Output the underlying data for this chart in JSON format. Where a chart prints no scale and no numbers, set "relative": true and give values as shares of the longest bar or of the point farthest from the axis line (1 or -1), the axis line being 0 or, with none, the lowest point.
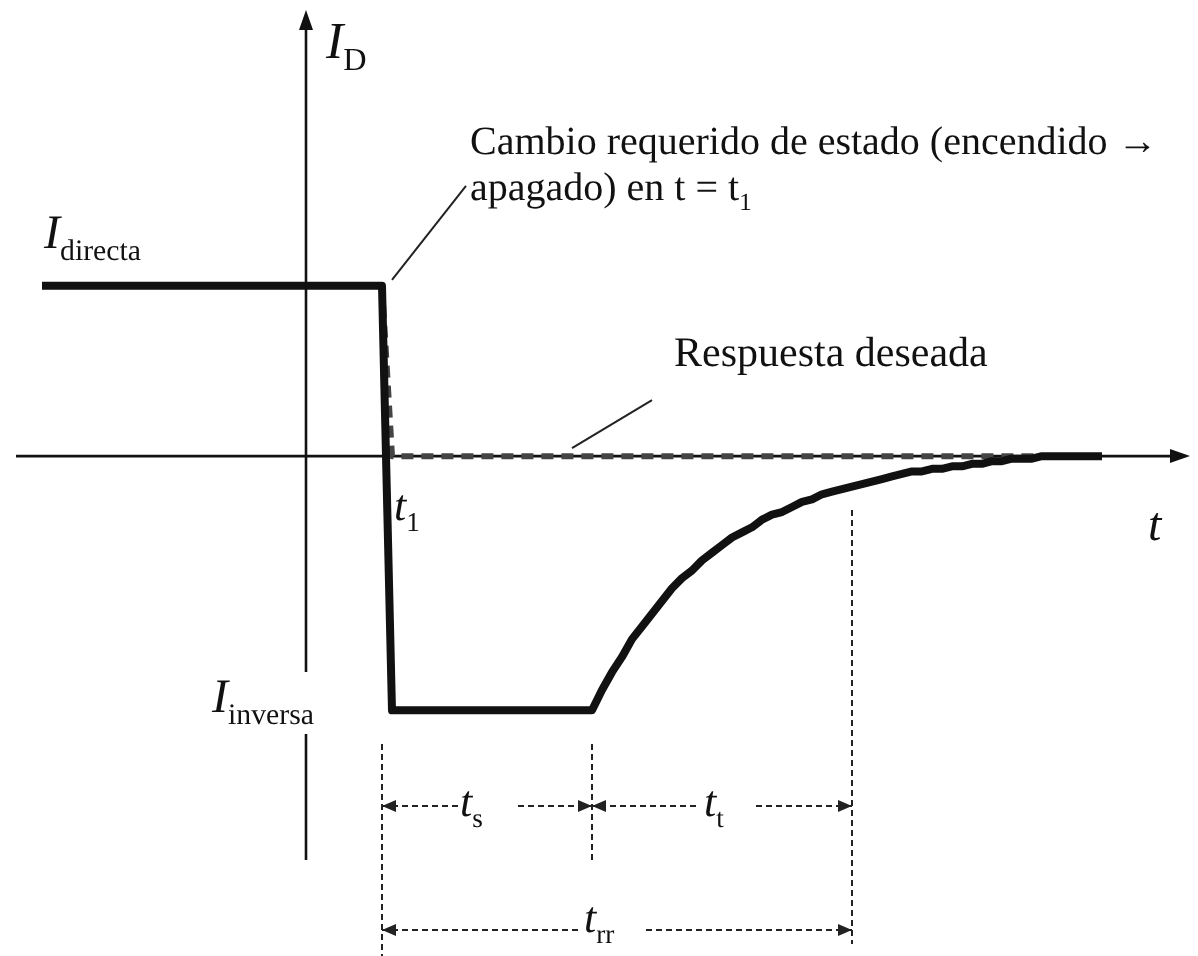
{
  "chart_data": {
    "type": "line",
    "relative": true,
    "xlabel": "t",
    "ylabel": "I$_{D}$",
    "grid": false,
    "legend": false,
    "marker": "none",
    "categories": [
      null,
      null,
      null,
      null,
      null,
      null,
      null,
      null,
      null,
      null,
      null,
      null,
      null,
      null,
      null,
      null,
      null,
      null,
      null,
      null,
      null,
      null,
      null,
      null,
      null,
      null,
      null,
      null,
      null,
      null,
      null,
      null,
      null,
      null,
      null,
      null,
      null,
      null,
      null,
      null,
      null,
      null,
      null,
      null,
      null,
      null,
      null,
      null,
      null,
      null,
      null,
      null,
      null,
      null,
      null,
      null,
      null,
      null,
      null,
      null,
      null,
      null,
      null,
      null,
      null,
      null,
      null,
      null,
      null,
      null,
      null,
      null,
      null,
      null,
      null,
      null,
      null,
      null,
      null,
      null,
      null,
      null,
      null,
      null,
      null,
      null,
      null,
      null,
      null,
      null,
      null,
      null,
      null,
      null,
      null,
      null,
      null,
      null,
      null,
      null,
      null,
      null,
      null,
      null,
      null,
      null,
      null,
      null,
      null,
      null,
      null,
      null,
      null,
      null
    ],
    "series": [
      {
        "type": "line",
        "color": "#111111",
        "line_style": "solid",
        "values": [
          0.67,
          0.67,
          0.67,
          0.67,
          0.67,
          0.67,
          0.67,
          0.67,
          0.67,
          0.67,
          0.67,
          0.67,
          0.67,
          0.67,
          0.67,
          0.67,
          0.67,
          0.67,
          0.67,
          0.67,
          0.67,
          0.67,
          0.67,
          0.67,
          0.67,
          0.67,
          0.67,
          0.67,
          0.67,
          0.67,
          0.67,
          0.67,
          0.67,
          0.67,
          0.67,
          -1,
          -1,
          -1,
          -1,
          -1,
          -1,
          -1,
          -1,
          -1,
          -1,
          -1,
          -1,
          -1,
          -1,
          -1,
          -1,
          -1,
          -1,
          -1,
          -1,
          -1,
          -0.92,
          -0.85,
          -0.79,
          -0.72,
          -0.67,
          -0.62,
          -0.57,
          -0.52,
          -0.48,
          -0.45,
          -0.41,
          -0.38,
          -0.35,
          -0.32,
          -0.3,
          -0.28,
          -0.25,
          -0.23,
          -0.22,
          -0.2,
          -0.18,
          -0.17,
          -0.15,
          -0.14,
          -0.13,
          -0.12,
          -0.11,
          -0.1,
          -0.09,
          -0.08,
          -0.07,
          -0.06,
          -0.06,
          -0.05,
          -0.05,
          -0.04,
          -0.04,
          -0.03,
          -0.03,
          -0.02,
          -0.02,
          -0.01,
          -0.01,
          -0.01,
          0,
          0,
          0,
          0,
          0,
          0,
          0,
          null,
          null,
          null,
          null,
          null,
          null,
          null
        ]
      },
      {
        "type": "line",
        "name": "Respuesta deseada",
        "color": "#444444",
        "line_style": "dashed",
        "values": [
          0.67,
          0.67,
          0.67,
          0.67,
          0.67,
          0.67,
          0.67,
          0.67,
          0.67,
          0.67,
          0.67,
          0.67,
          0.67,
          0.67,
          0.67,
          0.67,
          0.67,
          0.67,
          0.67,
          0.67,
          0.67,
          0.67,
          0.67,
          0.67,
          0.67,
          0.67,
          0.67,
          0.67,
          0.67,
          0.67,
          0.67,
          0.67,
          0.67,
          0.67,
          0.67,
          0,
          0,
          0,
          0,
          0,
          0,
          0,
          0,
          0,
          0,
          0,
          0,
          0,
          0,
          0,
          0,
          0,
          0,
          0,
          0,
          0,
          0,
          0,
          0,
          0,
          0,
          0,
          0,
          0,
          0,
          0,
          0,
          0,
          0,
          0,
          0,
          0,
          0,
          0,
          0,
          0,
          0,
          0,
          0,
          0,
          0,
          0,
          0,
          0,
          0,
          0,
          0,
          0,
          0,
          0,
          0,
          0,
          0,
          0,
          0,
          0,
          0,
          0,
          0,
          0,
          0,
          0,
          0,
          0,
          0,
          0,
          0,
          null,
          null,
          null,
          null,
          null,
          null,
          null
        ]
      }
    ],
    "annotations": [
      "I$_{directa}$",
      "Cambio requerido de estado (encendido → apagado) en t = t$_{1}$",
      "t$_{1}$",
      "I$_{inversa}$",
      "t$_{s}$",
      "t$_{t}$",
      "t$_{rr}$"
    ]
  }
}
